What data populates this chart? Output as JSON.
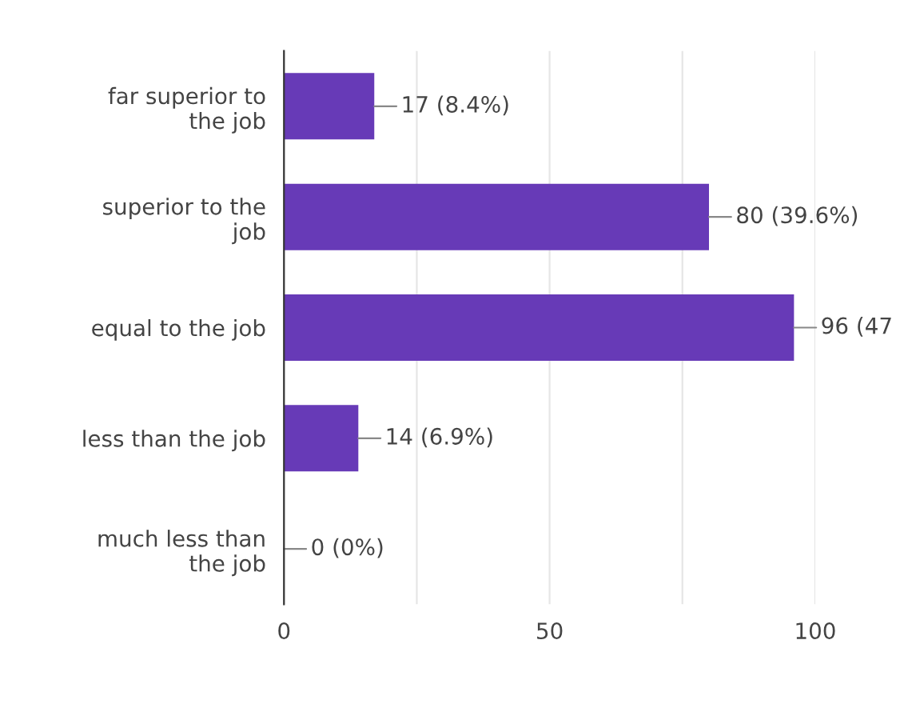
{
  "chart_data": {
    "type": "bar",
    "orientation": "horizontal",
    "categories": [
      "far superior to\nthe job",
      "superior to the\njob",
      "equal to the job",
      "less than the job",
      "much less than\nthe job"
    ],
    "values": [
      17,
      80,
      96,
      14,
      0
    ],
    "value_labels": [
      "17 (8.4%)",
      "80 (39.6%)",
      "96 (47",
      "14 (6.9%)",
      "0 (0%)"
    ],
    "color": "#673ab7",
    "xlim": [
      0,
      100
    ],
    "xticks": [
      0,
      {
        "value": 25,
        "label": null
      },
      50,
      {
        "value": 75,
        "label": null
      },
      100
    ],
    "grid": "x"
  }
}
